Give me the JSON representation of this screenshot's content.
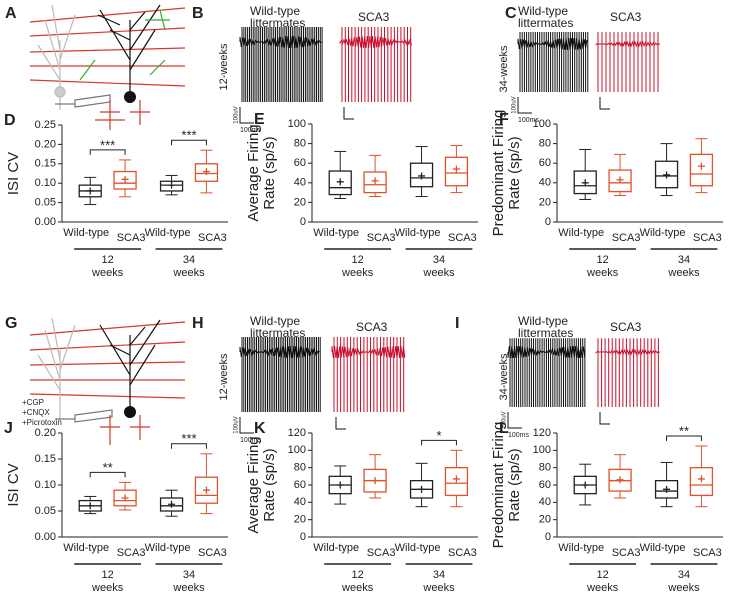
{
  "chart_data": [
    {
      "type": "box",
      "panel": "D",
      "ylabel": [
        "ISI CV"
      ],
      "ylim": [
        0,
        0.25
      ],
      "yticks": [
        {
          "value": 0,
          "label": "0.00"
        },
        0.05,
        {
          "value": 0.1,
          "label": "0.10"
        },
        0.15,
        {
          "value": 0.2,
          "label": "0.20"
        },
        0.25
      ],
      "categories": [
        "Wild-type",
        "SCA3",
        "Wild-type",
        "SCA3"
      ],
      "groups": [
        "12",
        "34"
      ],
      "group_unit": "weeks",
      "significance": [
        "***",
        "***"
      ],
      "boxes": [
        {
          "min": 0.045,
          "q1": 0.065,
          "median": 0.08,
          "q3": 0.095,
          "max": 0.115,
          "mean": 0.08,
          "color": "#222222"
        },
        {
          "min": 0.065,
          "q1": 0.085,
          "median": 0.1,
          "q3": 0.13,
          "max": 0.16,
          "mean": 0.11,
          "color": "#e0522a"
        },
        {
          "min": 0.07,
          "q1": 0.08,
          "median": 0.095,
          "q3": 0.105,
          "max": 0.12,
          "mean": 0.095,
          "color": "#222222"
        },
        {
          "min": 0.075,
          "q1": 0.105,
          "median": 0.125,
          "q3": 0.15,
          "max": 0.185,
          "mean": 0.13,
          "color": "#e0522a"
        }
      ]
    },
    {
      "type": "box",
      "panel": "E",
      "ylabel": [
        "Average Firing",
        "Rate (sp/s)"
      ],
      "ylim": [
        0,
        100
      ],
      "yticks": [
        0,
        20,
        40,
        60,
        80,
        100
      ],
      "categories": [
        "Wild-type",
        "SCA3",
        "Wild-type",
        "SCA3"
      ],
      "groups": [
        "12",
        "34"
      ],
      "group_unit": "weeks",
      "significance": [
        null,
        null
      ],
      "boxes": [
        {
          "min": 24,
          "q1": 28,
          "median": 35,
          "q3": 52,
          "max": 72,
          "mean": 41,
          "color": "#222222"
        },
        {
          "min": 26,
          "q1": 30,
          "median": 38,
          "q3": 51,
          "max": 68,
          "mean": 42,
          "color": "#e0522a"
        },
        {
          "min": 26,
          "q1": 36,
          "median": 45,
          "q3": 60,
          "max": 77,
          "mean": 47,
          "color": "#222222"
        },
        {
          "min": 30,
          "q1": 37,
          "median": 50,
          "q3": 66,
          "max": 78,
          "mean": 54,
          "color": "#e0522a"
        }
      ]
    },
    {
      "type": "box",
      "panel": "F",
      "ylabel": [
        "Predominant Firing",
        "Rate (sp/s)"
      ],
      "ylim": [
        0,
        100
      ],
      "yticks": [
        0,
        20,
        40,
        60,
        80,
        100
      ],
      "categories": [
        "Wild-type",
        "SCA3",
        "Wild-type",
        "SCA3"
      ],
      "groups": [
        "12",
        "34"
      ],
      "group_unit": "weeks",
      "significance": [
        null,
        null
      ],
      "boxes": [
        {
          "min": 23,
          "q1": 29,
          "median": 37,
          "q3": 52,
          "max": 74,
          "mean": 40,
          "color": "#222222"
        },
        {
          "min": 27,
          "q1": 31,
          "median": 40,
          "q3": 53,
          "max": 69,
          "mean": 43,
          "color": "#e0522a"
        },
        {
          "min": 27,
          "q1": 35,
          "median": 47,
          "q3": 62,
          "max": 80,
          "mean": 48,
          "color": "#222222"
        },
        {
          "min": 30,
          "q1": 37,
          "median": 49,
          "q3": 69,
          "max": 85,
          "mean": 57,
          "color": "#e0522a"
        }
      ]
    },
    {
      "type": "box",
      "panel": "J",
      "ylabel": [
        "ISI CV"
      ],
      "ylim": [
        0,
        0.2
      ],
      "yticks": [
        {
          "value": 0,
          "label": "0.00"
        },
        0.05,
        {
          "value": 0.1,
          "label": "0.10"
        },
        0.15,
        {
          "value": 0.2,
          "label": "0.20"
        }
      ],
      "categories": [
        "Wild-type",
        "SCA3",
        "Wild-type",
        "SCA3"
      ],
      "groups": [
        "12",
        "34"
      ],
      "group_unit": "weeks",
      "significance": [
        "**",
        "***"
      ],
      "boxes": [
        {
          "min": 0.045,
          "q1": 0.05,
          "median": 0.06,
          "q3": 0.07,
          "max": 0.078,
          "mean": 0.06,
          "color": "#222222"
        },
        {
          "min": 0.052,
          "q1": 0.06,
          "median": 0.07,
          "q3": 0.09,
          "max": 0.105,
          "mean": 0.075,
          "color": "#e0522a"
        },
        {
          "min": 0.04,
          "q1": 0.05,
          "median": 0.06,
          "q3": 0.075,
          "max": 0.09,
          "mean": 0.063,
          "color": "#222222"
        },
        {
          "min": 0.045,
          "q1": 0.065,
          "median": 0.08,
          "q3": 0.115,
          "max": 0.16,
          "mean": 0.09,
          "color": "#e0522a"
        }
      ]
    },
    {
      "type": "box",
      "panel": "K",
      "ylabel": [
        "Average Firing",
        "Rate (sp/s)"
      ],
      "ylim": [
        0,
        120
      ],
      "yticks": [
        0,
        20,
        40,
        60,
        80,
        100,
        120
      ],
      "categories": [
        "Wild-type",
        "SCA3",
        "Wild-type",
        "SCA3"
      ],
      "groups": [
        "12",
        "34"
      ],
      "group_unit": "weeks",
      "significance": [
        null,
        "*"
      ],
      "boxes": [
        {
          "min": 38,
          "q1": 50,
          "median": 60,
          "q3": 70,
          "max": 82,
          "mean": 60,
          "color": "#222222"
        },
        {
          "min": 45,
          "q1": 52,
          "median": 65,
          "q3": 78,
          "max": 95,
          "mean": 65,
          "color": "#e0522a"
        },
        {
          "min": 35,
          "q1": 45,
          "median": 55,
          "q3": 65,
          "max": 85,
          "mean": 55,
          "color": "#222222"
        },
        {
          "min": 35,
          "q1": 48,
          "median": 62,
          "q3": 80,
          "max": 100,
          "mean": 67,
          "color": "#e0522a"
        }
      ]
    },
    {
      "type": "box",
      "panel": "L",
      "ylabel": [
        "Predominant Firing",
        "Rate (sp/s)"
      ],
      "ylim": [
        0,
        120
      ],
      "yticks": [
        0,
        20,
        40,
        60,
        80,
        100,
        120
      ],
      "categories": [
        "Wild-type",
        "SCA3",
        "Wild-type",
        "SCA3"
      ],
      "groups": [
        "12",
        "34"
      ],
      "group_unit": "weeks",
      "significance": [
        null,
        "**"
      ],
      "boxes": [
        {
          "min": 37,
          "q1": 50,
          "median": 60,
          "q3": 70,
          "max": 84,
          "mean": 60,
          "color": "#222222"
        },
        {
          "min": 45,
          "q1": 53,
          "median": 65,
          "q3": 78,
          "max": 95,
          "mean": 66,
          "color": "#e0522a"
        },
        {
          "min": 35,
          "q1": 45,
          "median": 53,
          "q3": 65,
          "max": 86,
          "mean": 55,
          "color": "#222222"
        },
        {
          "min": 35,
          "q1": 48,
          "median": 60,
          "q3": 80,
          "max": 105,
          "mean": 67,
          "color": "#e0522a"
        }
      ]
    }
  ],
  "diagrams": [
    {
      "panel": "A"
    },
    {
      "panel": "G",
      "drugs": [
        "+CGP",
        "+CNQX",
        "+Picrotoxin"
      ]
    }
  ],
  "traces": [
    {
      "panel": "B",
      "age": "12-weeks",
      "wt_label": [
        "Wild-type",
        "littermates"
      ],
      "mutant_label": "SCA3",
      "scale_v": "100uV",
      "scale_t": "100ms"
    },
    {
      "panel": "C",
      "age": "34-weeks",
      "wt_label": [
        "Wild-type",
        "littermates"
      ],
      "mutant_label": "SCA3",
      "scale_v": "100uV",
      "scale_t": "100ms"
    },
    {
      "panel": "H",
      "age": "12-weeks",
      "wt_label": [
        "Wild-type",
        "littermates"
      ],
      "mutant_label": "SCA3",
      "scale_v": "100uV",
      "scale_t": "100ms"
    },
    {
      "panel": "I",
      "age": "34-weeks",
      "wt_label": [
        "Wild-type",
        "littermates"
      ],
      "mutant_label": "SCA3",
      "scale_v": "100uV",
      "scale_t": "100ms"
    }
  ]
}
